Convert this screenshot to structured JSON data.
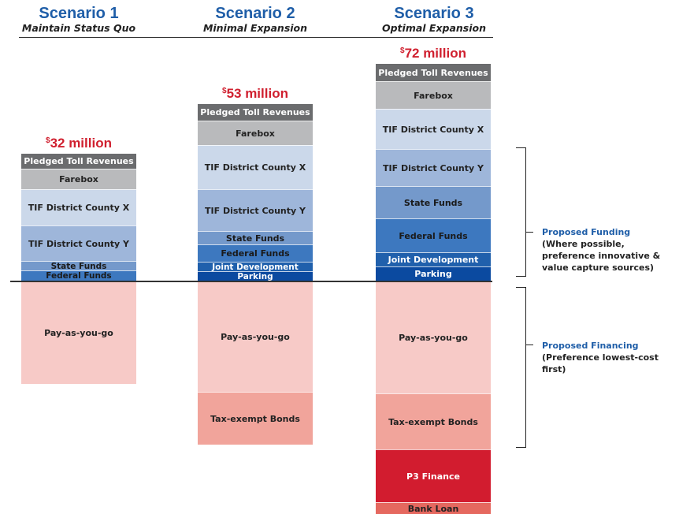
{
  "chart_data": {
    "type": "stacked-bar",
    "baseline_note": "Funding sources stacked above the line, financing sources below the line",
    "scenarios": [
      {
        "title": "Scenario 1",
        "subtitle": "Maintain Status Quo",
        "total_prefix": "$",
        "total_label": "32 million",
        "total_value": 32,
        "funding": [
          {
            "name": "Pledged Toll Revenues",
            "value": 1.9
          },
          {
            "name": "Farebox",
            "value": 2.6
          },
          {
            "name": "TIF District County X",
            "value": 4.6
          },
          {
            "name": "TIF District County Y",
            "value": 4.5
          },
          {
            "name": "State Funds",
            "value": 1.2
          },
          {
            "name": "Federal Funds",
            "value": 1.3
          }
        ],
        "financing": [
          {
            "name": "Pay-as-you-go",
            "value": 12.9
          }
        ]
      },
      {
        "title": "Scenario 2",
        "subtitle": "Minimal Expansion",
        "total_prefix": "$",
        "total_label": "53 million",
        "total_value": 53,
        "funding": [
          {
            "name": "Pledged Toll Revenues",
            "value": 2.1
          },
          {
            "name": "Farebox",
            "value": 3.1
          },
          {
            "name": "TIF District County X",
            "value": 5.6
          },
          {
            "name": "TIF District County Y",
            "value": 5.3
          },
          {
            "name": "State Funds",
            "value": 1.7
          },
          {
            "name": "Federal Funds",
            "value": 2.2
          },
          {
            "name": "Joint Development",
            "value": 1.2
          },
          {
            "name": "Parking",
            "value": 1.2
          }
        ],
        "financing": [
          {
            "name": "Pay-as-you-go",
            "value": 13.9
          },
          {
            "name": "Tax-exempt Bonds",
            "value": 6.7
          }
        ]
      },
      {
        "title": "Scenario 3",
        "subtitle": "Optimal Expansion",
        "total_prefix": "$",
        "total_label": "72 million",
        "total_value": 72,
        "funding": [
          {
            "name": "Pledged Toll Revenues",
            "value": 2.2
          },
          {
            "name": "Farebox",
            "value": 3.5
          },
          {
            "name": "TIF District County X",
            "value": 5.1
          },
          {
            "name": "TIF District County Y",
            "value": 4.7
          },
          {
            "name": "State Funds",
            "value": 4.1
          },
          {
            "name": "Federal Funds",
            "value": 4.3
          },
          {
            "name": "Joint Development",
            "value": 1.8
          },
          {
            "name": "Parking",
            "value": 1.8
          }
        ],
        "financing": [
          {
            "name": "Pay-as-you-go",
            "value": 14.1
          },
          {
            "name": "Tax-exempt Bonds",
            "value": 7.1
          },
          {
            "name": "P3 Finance",
            "value": 6.7
          },
          {
            "name": "Bank Loan",
            "value": 1.5
          }
        ]
      }
    ],
    "styles": {
      "Pledged Toll Revenues": {
        "bg": "#6b6c6e",
        "fg": "#ffffff"
      },
      "Farebox": {
        "bg": "#b9babc",
        "fg": "#222222"
      },
      "TIF District County X": {
        "bg": "#cbd8ea",
        "fg": "#222222"
      },
      "TIF District County Y": {
        "bg": "#9eb6da",
        "fg": "#222222"
      },
      "State Funds": {
        "bg": "#7499cb",
        "fg": "#1a1a1a"
      },
      "Federal Funds": {
        "bg": "#3d78bf",
        "fg": "#1a1a1a"
      },
      "Joint Development": {
        "bg": "#2060ac",
        "fg": "#ffffff"
      },
      "Parking": {
        "bg": "#0b4aa0",
        "fg": "#ffffff"
      },
      "Pay-as-you-go": {
        "bg": "#f7cac7",
        "fg": "#222222"
      },
      "Tax-exempt Bonds": {
        "bg": "#f1a49b",
        "fg": "#222222"
      },
      "P3 Finance": {
        "bg": "#d21c2f",
        "fg": "#ffffff"
      },
      "Bank Loan": {
        "bg": "#e5685f",
        "fg": "#222222"
      }
    },
    "annotations": {
      "funding": {
        "title": "Proposed Funding",
        "lines": [
          "(Where possible,",
          "preference innovative &",
          "value capture sources)"
        ]
      },
      "financing": {
        "title": "Proposed Financing",
        "lines": [
          "(Preference lowest-cost first)"
        ]
      }
    }
  }
}
